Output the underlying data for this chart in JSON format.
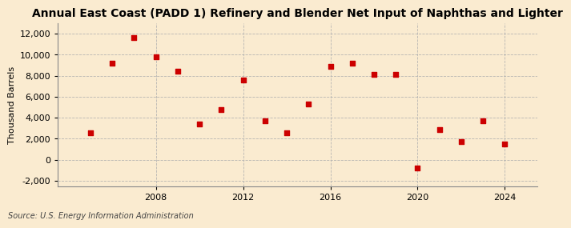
{
  "title": "Annual East Coast (PADD 1) Refinery and Blender Net Input of Naphthas and Lighter",
  "ylabel": "Thousand Barrels",
  "source": "Source: U.S. Energy Information Administration",
  "background_color": "#faebd0",
  "plot_bg_color": "#faebd0",
  "marker_color": "#cc0000",
  "years": [
    2005,
    2006,
    2007,
    2008,
    2009,
    2010,
    2011,
    2012,
    2013,
    2014,
    2015,
    2016,
    2017,
    2018,
    2019,
    2020,
    2021,
    2022,
    2023,
    2024
  ],
  "values": [
    2600,
    9200,
    11600,
    9800,
    8400,
    3400,
    4800,
    7600,
    3700,
    2600,
    5300,
    8900,
    9200,
    8100,
    8100,
    -800,
    2900,
    1700,
    3700,
    1500
  ],
  "xlim": [
    2003.5,
    2025.5
  ],
  "ylim": [
    -2500,
    13000
  ],
  "yticks": [
    -2000,
    0,
    2000,
    4000,
    6000,
    8000,
    10000,
    12000
  ],
  "xticks": [
    2008,
    2012,
    2016,
    2020,
    2024
  ],
  "grid_color": "#b0b0b0",
  "title_fontsize": 10,
  "axis_fontsize": 8,
  "tick_fontsize": 8,
  "source_fontsize": 7
}
